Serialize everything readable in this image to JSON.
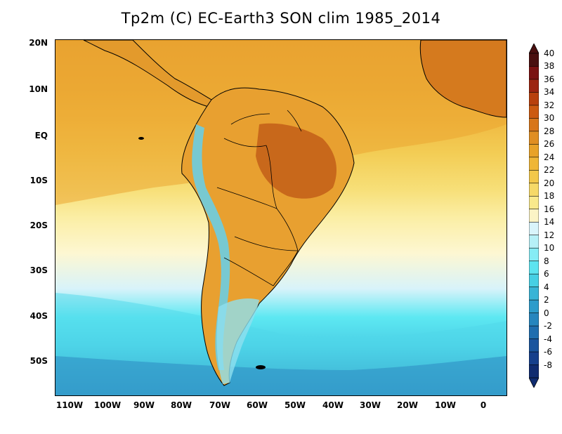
{
  "title": "Tp2m (C) EC-Earth3 SON clim 1985_2014",
  "latitude_labels": [
    "20N",
    "10N",
    "EQ",
    "10S",
    "20S",
    "30S",
    "40S",
    "50S"
  ],
  "longitude_labels": [
    "110W",
    "100W",
    "90W",
    "80W",
    "70W",
    "60W",
    "50W",
    "40W",
    "30W",
    "20W",
    "10W",
    "0"
  ],
  "colorbar": {
    "levels": [
      "40",
      "38",
      "36",
      "34",
      "32",
      "30",
      "28",
      "26",
      "24",
      "22",
      "20",
      "18",
      "16",
      "14",
      "12",
      "10",
      "8",
      "6",
      "4",
      "2",
      "0",
      "-2",
      "-4",
      "-6",
      "-8"
    ],
    "colors": [
      "#4a1010",
      "#7a1212",
      "#9c2410",
      "#b8400c",
      "#cc5a10",
      "#d8761a",
      "#e08e22",
      "#e8a228",
      "#efb636",
      "#f3c84a",
      "#f6d968",
      "#f9e98c",
      "#fbf4c6",
      "#d9f4fb",
      "#b6f0f7",
      "#86ecf5",
      "#5de4f0",
      "#46cfe4",
      "#38b4d6",
      "#2d9ccb",
      "#2686be",
      "#1f6eaf",
      "#1a559e",
      "#16408c",
      "#102c70"
    ]
  },
  "colors": {
    "land_border": "#000000",
    "hot_region": "#c4621a",
    "andes_cold": "#6ccde3"
  }
}
